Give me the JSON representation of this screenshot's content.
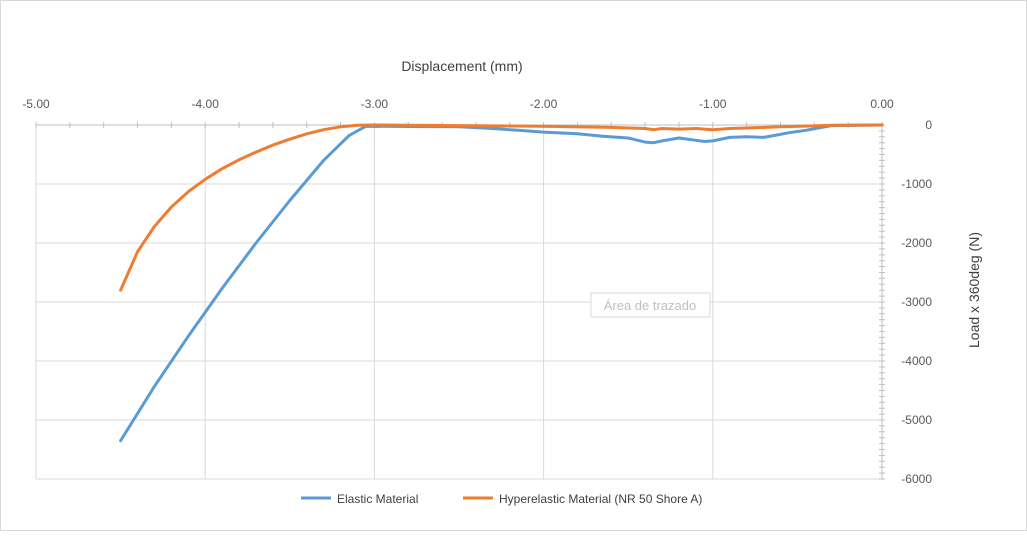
{
  "chart_data": {
    "type": "line",
    "xlabel": "Displacement (mm)",
    "ylabel": "Load x 360deg (N)",
    "xlim": [
      -5.0,
      0.0
    ],
    "ylim": [
      -6000,
      0
    ],
    "x_ticks": [
      "-5.00",
      "-4.00",
      "-3.00",
      "-2.00",
      "-1.00",
      "0.00"
    ],
    "y_ticks": [
      "0",
      "-1000",
      "-2000",
      "-3000",
      "-4000",
      "-5000",
      "-6000"
    ],
    "x_axis_position": "top",
    "y_axis_position": "right",
    "grid": true,
    "legend_position": "bottom",
    "tooltip_text": "Área de trazado",
    "series": [
      {
        "name": "Elastic Material",
        "color": "#5B9BD5",
        "x": [
          -4.5,
          -4.3,
          -4.1,
          -3.9,
          -3.7,
          -3.5,
          -3.3,
          -3.15,
          -3.05,
          -2.8,
          -2.5,
          -2.3,
          -2.15,
          -2.0,
          -1.8,
          -1.65,
          -1.5,
          -1.4,
          -1.35,
          -1.3,
          -1.2,
          -1.1,
          -1.05,
          -1.0,
          -0.9,
          -0.8,
          -0.7,
          -0.62,
          -0.55,
          -0.45,
          -0.3,
          0.0
        ],
        "values": [
          -5350,
          -4430,
          -3580,
          -2770,
          -2000,
          -1280,
          -600,
          -180,
          -20,
          -25,
          -30,
          -60,
          -90,
          -120,
          -150,
          -190,
          -220,
          -290,
          -300,
          -270,
          -220,
          -260,
          -280,
          -270,
          -210,
          -200,
          -210,
          -170,
          -130,
          -90,
          -10,
          0
        ]
      },
      {
        "name": "Hyperelastic Material (NR 50 Shore A)",
        "color": "#ED7D31",
        "x": [
          -4.5,
          -4.4,
          -4.3,
          -4.2,
          -4.1,
          -4.0,
          -3.9,
          -3.8,
          -3.7,
          -3.6,
          -3.5,
          -3.4,
          -3.3,
          -3.2,
          -3.1,
          -3.0,
          -2.5,
          -2.0,
          -1.6,
          -1.4,
          -1.35,
          -1.3,
          -1.2,
          -1.1,
          -1.0,
          -0.9,
          -0.8,
          -0.6,
          -0.4,
          -0.3,
          0.0
        ],
        "values": [
          -2800,
          -2150,
          -1720,
          -1390,
          -1130,
          -920,
          -740,
          -590,
          -460,
          -340,
          -240,
          -150,
          -80,
          -30,
          -5,
          0,
          -10,
          -20,
          -40,
          -60,
          -80,
          -60,
          -70,
          -60,
          -80,
          -60,
          -50,
          -30,
          -15,
          -5,
          0
        ]
      }
    ]
  }
}
